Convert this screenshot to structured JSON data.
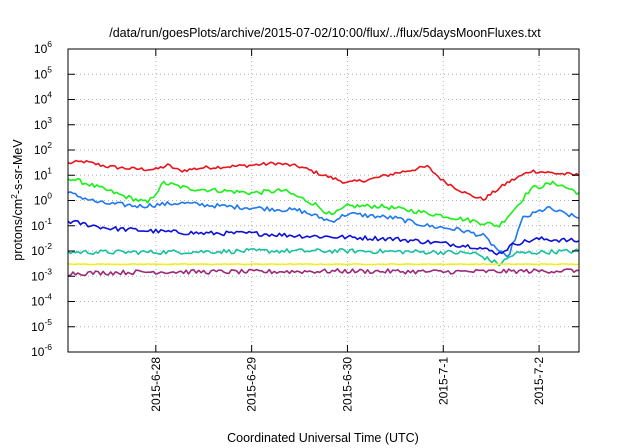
{
  "chart_data": {
    "type": "line",
    "title": "/data/run/goesPlots/archive/2015-07-02/10:00/flux/../flux/5daysMoonFluxes.txt",
    "xlabel": "Coordinated Universal Time (UTC)",
    "ylabel_parts": [
      "protons/cm",
      "2",
      "-s-sr-MeV"
    ],
    "y_scale": "log",
    "ylim": [
      1e-06,
      1000000.0
    ],
    "y_ticks": [
      {
        "base": "10",
        "exp": "6",
        "value": 1000000.0
      },
      {
        "base": "10",
        "exp": "5",
        "value": 100000.0
      },
      {
        "base": "10",
        "exp": "4",
        "value": 10000.0
      },
      {
        "base": "10",
        "exp": "3",
        "value": 1000.0
      },
      {
        "base": "10",
        "exp": "2",
        "value": 100.0
      },
      {
        "base": "10",
        "exp": "1",
        "value": 10.0
      },
      {
        "base": "10",
        "exp": "0",
        "value": 1.0
      },
      {
        "base": "10",
        "exp": "-1",
        "value": 0.1
      },
      {
        "base": "10",
        "exp": "-2",
        "value": 0.01
      },
      {
        "base": "10",
        "exp": "-3",
        "value": 0.001
      },
      {
        "base": "10",
        "exp": "-4",
        "value": 0.0001
      },
      {
        "base": "10",
        "exp": "-5",
        "value": 1e-05
      },
      {
        "base": "10",
        "exp": "-6",
        "value": 1e-06
      }
    ],
    "xlim": [
      "2015-06-27 02:00",
      "2015-07-02 10:00"
    ],
    "x_ticks": [
      {
        "label": "2015-6-28",
        "value": "2015-06-28 00:00"
      },
      {
        "label": "2015-6-29",
        "value": "2015-06-29 00:00"
      },
      {
        "label": "2015-6-30",
        "value": "2015-06-30 00:00"
      },
      {
        "label": "2015-7-1",
        "value": "2015-07-01 00:00"
      },
      {
        "label": "2015-7-2",
        "value": "2015-07-02 00:00"
      }
    ],
    "grid": true,
    "series": [
      {
        "color": "#e8141c",
        "x": [
          "2015-06-27 02:00",
          "2015-06-27 06:00",
          "2015-06-27 12:00",
          "2015-06-27 18:00",
          "2015-06-28 00:00",
          "2015-06-28 03:00",
          "2015-06-28 06:00",
          "2015-06-28 12:00",
          "2015-06-28 18:00",
          "2015-06-29 00:00",
          "2015-06-29 06:00",
          "2015-06-29 12:00",
          "2015-06-29 18:00",
          "2015-06-30 00:00",
          "2015-06-30 06:00",
          "2015-06-30 12:00",
          "2015-06-30 20:00",
          "2015-07-01 00:00",
          "2015-07-01 06:00",
          "2015-07-01 10:00",
          "2015-07-01 16:00",
          "2015-07-01 22:00",
          "2015-07-02 04:00",
          "2015-07-02 10:00"
        ],
        "y": [
          30,
          35,
          22,
          18,
          17,
          25,
          15,
          20,
          22,
          25,
          30,
          22,
          10,
          5,
          7,
          12,
          22,
          6,
          1.8,
          1.1,
          5,
          15,
          12,
          10
        ]
      },
      {
        "color": "#18f018",
        "x": [
          "2015-06-27 02:00",
          "2015-06-27 08:00",
          "2015-06-27 16:00",
          "2015-06-27 22:00",
          "2015-06-28 02:00",
          "2015-06-28 08:00",
          "2015-06-28 16:00",
          "2015-06-29 00:00",
          "2015-06-29 08:00",
          "2015-06-29 16:00",
          "2015-06-29 20:00",
          "2015-06-30 00:00",
          "2015-06-30 08:00",
          "2015-06-30 16:00",
          "2015-07-01 00:00",
          "2015-07-01 08:00",
          "2015-07-01 14:00",
          "2015-07-01 18:00",
          "2015-07-01 22:00",
          "2015-07-02 04:00",
          "2015-07-02 10:00"
        ],
        "y": [
          8,
          4,
          1.5,
          0.8,
          5,
          3,
          2.5,
          2,
          2.5,
          0.7,
          0.25,
          0.6,
          0.6,
          0.4,
          0.25,
          0.15,
          0.1,
          0.5,
          3,
          5,
          2
        ]
      },
      {
        "color": "#1e78f0",
        "x": [
          "2015-06-27 02:00",
          "2015-06-27 10:00",
          "2015-06-27 20:00",
          "2015-06-28 06:00",
          "2015-06-28 16:00",
          "2015-06-29 02:00",
          "2015-06-29 12:00",
          "2015-06-29 20:00",
          "2015-06-30 00:00",
          "2015-06-30 12:00",
          "2015-06-30 20:00",
          "2015-07-01 04:00",
          "2015-07-01 10:00",
          "2015-07-01 14:00",
          "2015-07-01 16:00",
          "2015-07-01 20:00",
          "2015-07-02 02:00",
          "2015-07-02 10:00"
        ],
        "y": [
          2,
          0.8,
          0.6,
          0.8,
          0.6,
          0.5,
          0.4,
          0.15,
          0.3,
          0.2,
          0.1,
          0.07,
          0.04,
          0.01,
          0.005,
          0.2,
          0.5,
          0.2
        ]
      },
      {
        "color": "#0c10d8",
        "x": [
          "2015-06-27 02:00",
          "2015-06-27 12:00",
          "2015-06-28 00:00",
          "2015-06-28 12:00",
          "2015-06-29 00:00",
          "2015-06-29 12:00",
          "2015-06-30 00:00",
          "2015-06-30 12:00",
          "2015-07-01 00:00",
          "2015-07-01 08:00",
          "2015-07-01 14:00",
          "2015-07-01 18:00",
          "2015-07-02 00:00",
          "2015-07-02 10:00"
        ],
        "y": [
          0.15,
          0.08,
          0.06,
          0.05,
          0.05,
          0.04,
          0.035,
          0.03,
          0.02,
          0.015,
          0.008,
          0.02,
          0.03,
          0.025
        ]
      },
      {
        "color": "#18c0a0",
        "x": [
          "2015-06-27 02:00",
          "2015-06-28 00:00",
          "2015-06-29 00:00",
          "2015-06-30 00:00",
          "2015-07-01 00:00",
          "2015-07-01 08:00",
          "2015-07-01 14:00",
          "2015-07-01 18:00",
          "2015-07-02 00:00",
          "2015-07-02 10:00"
        ],
        "y": [
          0.009,
          0.009,
          0.01,
          0.01,
          0.009,
          0.008,
          0.003,
          0.008,
          0.009,
          0.01
        ]
      },
      {
        "color": "#f0f018",
        "x": [
          "2015-06-27 02:00",
          "2015-07-02 10:00"
        ],
        "y": [
          0.003,
          0.003
        ]
      },
      {
        "color": "#9c2878",
        "x": [
          "2015-06-27 02:00",
          "2015-06-28 00:00",
          "2015-06-29 00:00",
          "2015-06-30 00:00",
          "2015-07-01 00:00",
          "2015-07-02 00:00",
          "2015-07-02 10:00"
        ],
        "y": [
          0.0013,
          0.0015,
          0.0015,
          0.0016,
          0.0015,
          0.0016,
          0.0017
        ]
      }
    ]
  }
}
